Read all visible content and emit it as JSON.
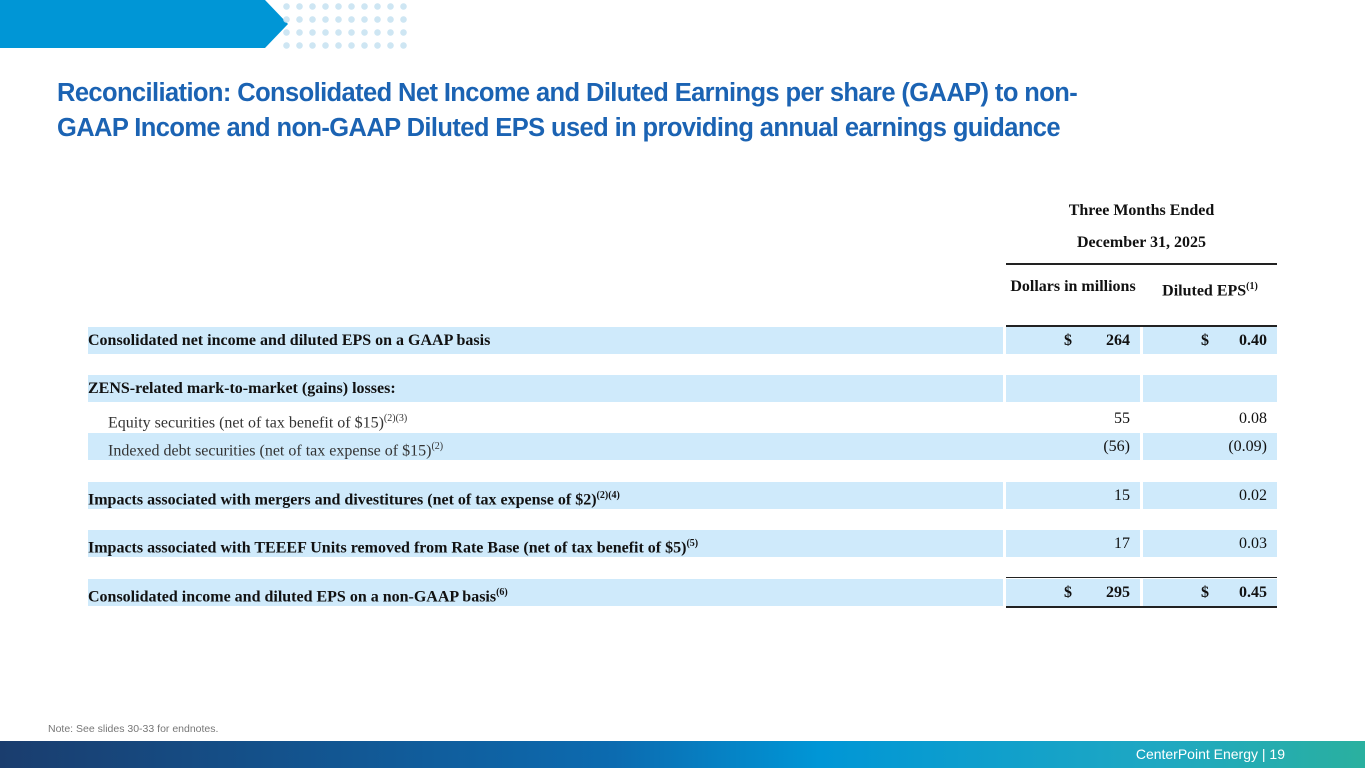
{
  "title": "Reconciliation: Consolidated Net Income and Diluted Earnings per share (GAAP) to non-GAAP Income and non-GAAP Diluted EPS used in providing annual earnings guidance",
  "table": {
    "period_line1": "Three Months Ended",
    "period_line2": "December 31, 2025",
    "col_dollars": "Dollars in millions",
    "col_eps": "Diluted EPS",
    "col_eps_sup": "(1)",
    "rows": [
      {
        "label": "Consolidated net income and diluted EPS on a GAAP basis",
        "sup": "",
        "dollars_cur": "$",
        "dollars": "264",
        "eps_cur": "$",
        "eps": "0.40"
      },
      {
        "label": "ZENS-related mark-to-market (gains) losses:",
        "sup": "",
        "dollars": "",
        "eps": ""
      },
      {
        "label": "Equity securities (net of tax benefit of $15)",
        "sup": "(2)(3)",
        "dollars": "55",
        "eps": "0.08"
      },
      {
        "label": "Indexed debt securities (net of tax expense of $15)",
        "sup": "(2)",
        "dollars": "(56)",
        "eps": "(0.09)"
      },
      {
        "label": "Impacts associated with mergers and divestitures (net of tax expense of $2)",
        "sup": "(2)(4)",
        "dollars": "15",
        "eps": "0.02"
      },
      {
        "label": "Impacts associated with TEEEF Units removed from Rate Base (net of tax benefit of $5)",
        "sup": "(5)",
        "dollars": "17",
        "eps": "0.03"
      },
      {
        "label": "Consolidated income and diluted EPS on a non-GAAP basis",
        "sup": "(6)",
        "dollars_cur": "$",
        "dollars": "295",
        "eps_cur": "$",
        "eps": "0.45"
      }
    ]
  },
  "note": "Note: See slides 30-33 for endnotes.",
  "footer": "CenterPoint Energy | 19"
}
